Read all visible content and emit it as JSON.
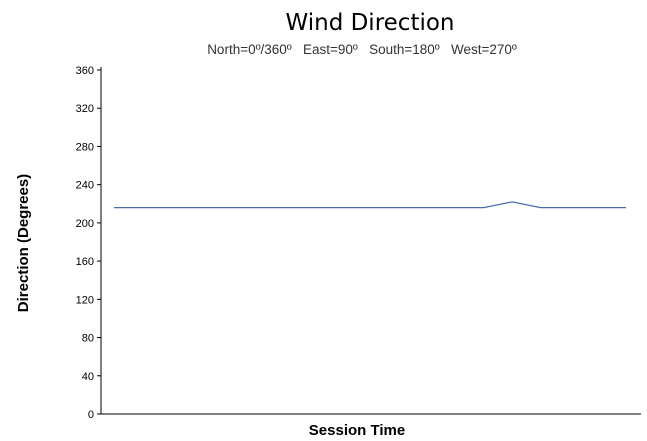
{
  "chart_data": {
    "type": "line",
    "title": "Wind Direction",
    "subtitle": "North=0º/360º   East=90º   South=180º   West=270º",
    "xlabel": "Session Time",
    "ylabel": "Direction (Degrees)",
    "ylim": [
      0,
      360
    ],
    "yticks": [
      0,
      40,
      80,
      120,
      160,
      200,
      240,
      280,
      320,
      360
    ],
    "grid": false,
    "legend": "none",
    "x": [
      0,
      1,
      2,
      3,
      4,
      5,
      6,
      7,
      8,
      9,
      10,
      11,
      12,
      13,
      14,
      15,
      16,
      17,
      18
    ],
    "series": [
      {
        "color": "#4a6ca8",
        "values": [
          216,
          216,
          216,
          216,
          216,
          216,
          216,
          216,
          216,
          216,
          216,
          216,
          216,
          216,
          222,
          216,
          216,
          216,
          216
        ]
      }
    ]
  }
}
